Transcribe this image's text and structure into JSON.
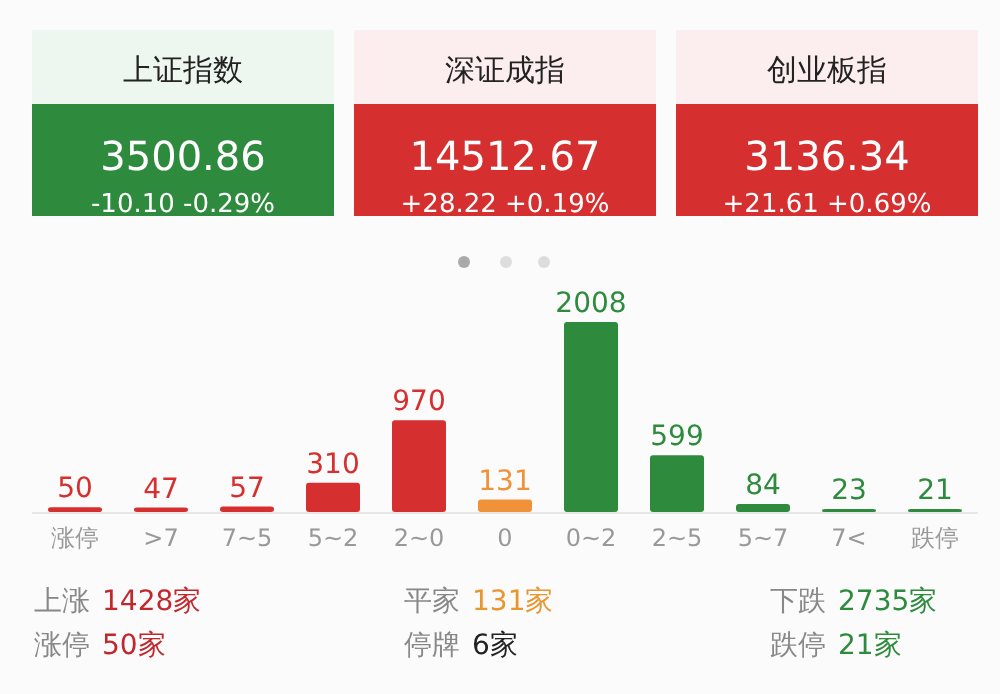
{
  "chart_data": [
    {
      "type": "other",
      "title": "上证指数",
      "annotations": [
        "3500.86",
        "-10.10",
        "-0.29%"
      ],
      "color": "#2e8b3e"
    },
    {
      "type": "other",
      "title": "深证成指",
      "annotations": [
        "14512.67",
        "+28.22",
        "+0.19%"
      ],
      "color": "#d62f2f"
    },
    {
      "type": "other",
      "title": "创业板指",
      "annotations": [
        "3136.34",
        "+21.61",
        "+0.69%"
      ],
      "color": "#d62f2f"
    },
    {
      "type": "bar",
      "categories": [
        "涨停",
        ">7",
        "7~5",
        "5~2",
        "2~0",
        "0",
        "0~2",
        "2~5",
        "5~7",
        "7<",
        "跌停"
      ],
      "values": [
        50,
        47,
        57,
        310,
        970,
        131,
        2008,
        599,
        84,
        23,
        21
      ],
      "colors": [
        "#d62f2f",
        "#d62f2f",
        "#d62f2f",
        "#d62f2f",
        "#d62f2f",
        "#f0923a",
        "#2e8b3e",
        "#2e8b3e",
        "#2e8b3e",
        "#2e8b3e",
        "#2e8b3e"
      ],
      "data_labels": true
    },
    {
      "type": "other",
      "annotations": [
        "上涨",
        "1428家",
        "涨停",
        "50家",
        "平家",
        "131家",
        "停牌",
        "6家",
        "下跌",
        "2735家",
        "跌停",
        "21家"
      ],
      "colors": [
        "#888888",
        "#c0282d",
        "#888888",
        "#c0282d",
        "#888888",
        "#e8962e",
        "#888888",
        "#222222",
        "#888888",
        "#2e8b3e",
        "#888888",
        "#2e8b3e"
      ]
    }
  ]
}
